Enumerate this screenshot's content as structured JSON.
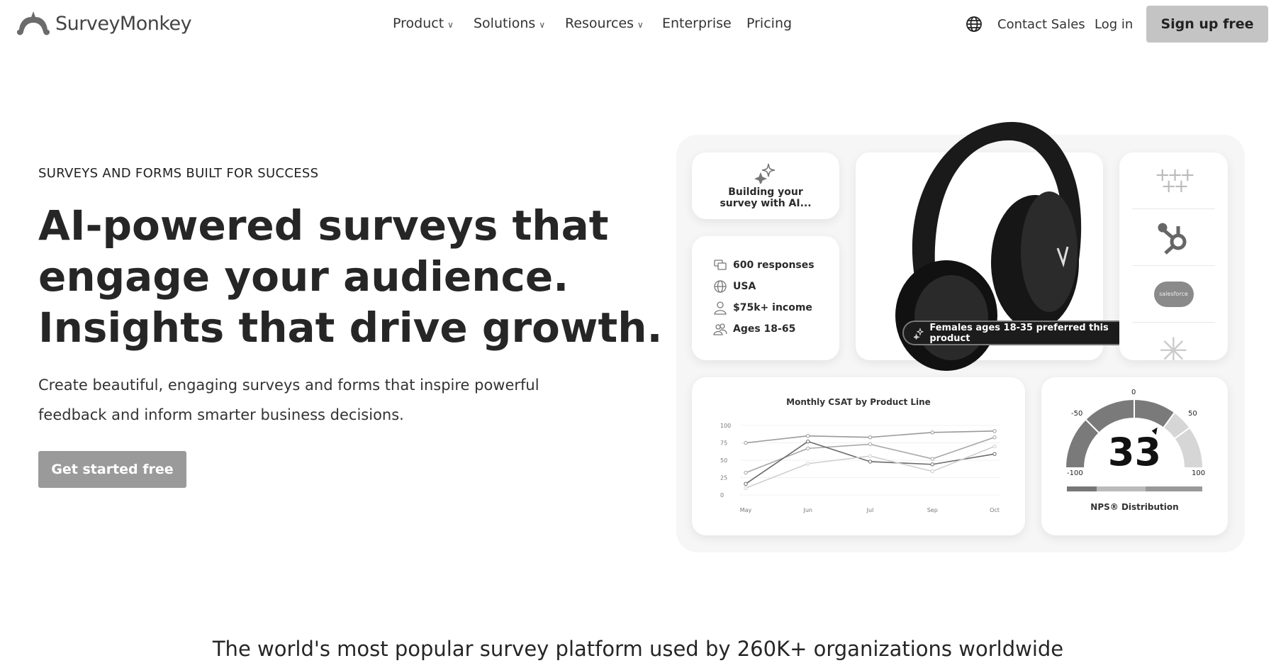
{
  "header": {
    "brand": "SurveyMonkey",
    "nav": [
      {
        "label": "Product",
        "dropdown": true
      },
      {
        "label": "Solutions",
        "dropdown": true
      },
      {
        "label": "Resources",
        "dropdown": true
      },
      {
        "label": "Enterprise",
        "dropdown": false
      },
      {
        "label": "Pricing",
        "dropdown": false
      }
    ],
    "globe_icon": "globe-icon",
    "contact_sales": "Contact Sales",
    "login": "Log in",
    "signup": "Sign up free"
  },
  "hero": {
    "eyebrow": "SURVEYS AND FORMS BUILT FOR SUCCESS",
    "headline": [
      "AI-powered surveys that",
      "engage your audience.",
      "Insights that drive growth."
    ],
    "subtext": "Create beautiful, engaging surveys and forms that inspire powerful feedback and inform smarter business decisions.",
    "cta": "Get started free"
  },
  "illustration": {
    "ai_card": {
      "icon": "sparkle-icon",
      "text": [
        "Building your",
        "survey with AI..."
      ]
    },
    "audience_card": {
      "items": [
        {
          "icon": "chat-icon",
          "label": "600 responses"
        },
        {
          "icon": "globe-icon",
          "label": "USA"
        },
        {
          "icon": "person-icon",
          "label": "$75k+ income"
        },
        {
          "icon": "people-icon",
          "label": "Ages 18-65"
        }
      ]
    },
    "product_pill": "Females ages 18-35 preferred this product",
    "integrations": [
      {
        "icon": "tableau-icon"
      },
      {
        "icon": "hubspot-icon"
      },
      {
        "icon": "salesforce-icon",
        "label": "salesforce"
      },
      {
        "icon": "zapier-icon"
      }
    ],
    "nps": {
      "value": "33",
      "min": "-100",
      "max": "100",
      "ticks": [
        "-50",
        "0",
        "50"
      ],
      "label": "NPS® Distribution"
    }
  },
  "chart_data": {
    "type": "line",
    "title": "Monthly CSAT by Product Line",
    "categories": [
      "May",
      "Jun",
      "Jul",
      "Sep",
      "Oct"
    ],
    "yticks": [
      "0",
      "25",
      "50",
      "75",
      "100"
    ],
    "ylim": [
      0,
      100
    ],
    "grid": true,
    "series": [
      {
        "values": [
          75,
          85,
          83,
          90,
          92
        ],
        "color": "#9a9a9a"
      },
      {
        "values": [
          32,
          67,
          73,
          52,
          83
        ],
        "color": "#a8a8a8"
      },
      {
        "values": [
          16,
          77,
          48,
          44,
          59
        ],
        "color": "#6a6a6a"
      },
      {
        "values": [
          10,
          45,
          56,
          34,
          70
        ],
        "color": "#cfcfcf"
      }
    ]
  },
  "trust": {
    "text": "The world's most popular survey platform used by 260K+ organizations worldwide"
  }
}
